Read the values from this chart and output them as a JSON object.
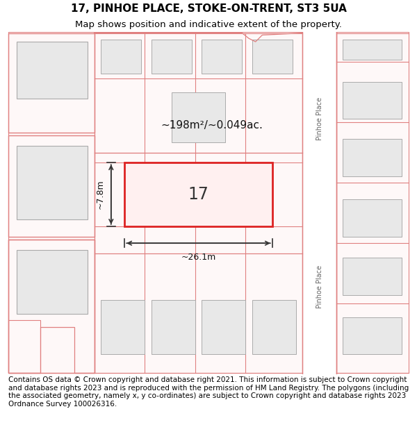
{
  "title_line1": "17, PINHOE PLACE, STOKE-ON-TRENT, ST3 5UA",
  "title_line2": "Map shows position and indicative extent of the property.",
  "footer_text": "Contains OS data © Crown copyright and database right 2021. This information is subject to Crown copyright and database rights 2023 and is reproduced with the permission of HM Land Registry. The polygons (including the associated geometry, namely x, y co-ordinates) are subject to Crown copyright and database rights 2023 Ordnance Survey 100026316.",
  "map_bg": "#ffffff",
  "building_fill": "#e8e8e8",
  "building_edge": "#aaaaaa",
  "plot_border_color": "#dd2222",
  "other_border_color": "#e08080",
  "road_label": "Pinhoe Place",
  "area_text": "~198m²/~0.049ac.",
  "plot_number": "17",
  "dim_width": "~26.1m",
  "dim_height": "~7.8m",
  "title_fontsize": 11,
  "subtitle_fontsize": 9.5,
  "footer_fontsize": 7.5
}
